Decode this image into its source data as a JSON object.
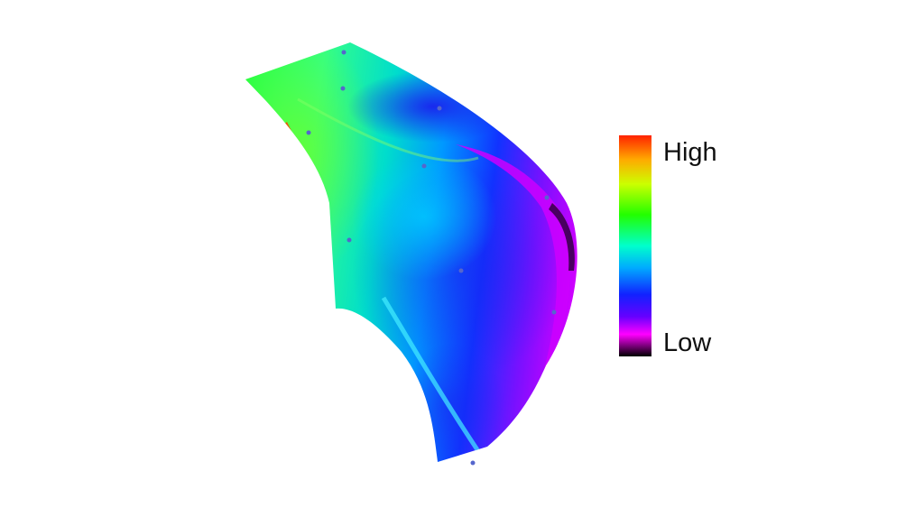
{
  "colorbar": {
    "high_label": "High",
    "low_label": "Low",
    "stops": [
      "#ff2200",
      "#ffaa00",
      "#ccff00",
      "#22ff00",
      "#00ffcc",
      "#00aaff",
      "#1122ff",
      "#6600ff",
      "#ff00ff",
      "#000000"
    ]
  }
}
